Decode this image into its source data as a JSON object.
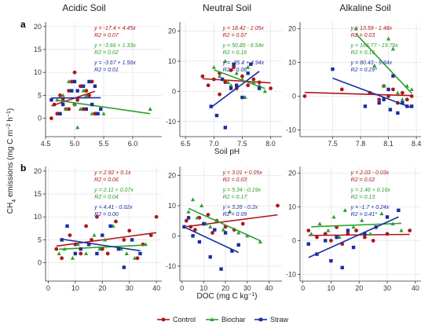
{
  "figure": {
    "column_titles": [
      "Acidic Soil",
      "Neutral Soil",
      "Alkaline Soil"
    ],
    "row_letters": [
      "a",
      "b"
    ],
    "y_axis_label": "CH4 emissions (mg C m-2 h-1)",
    "colors": {
      "Control": "#b0161c",
      "Biochar": "#2e9e2e",
      "Straw": "#1a2ea0"
    }
  },
  "legend": [
    {
      "name": "Control",
      "marker": "circle",
      "color": "#b0161c"
    },
    {
      "name": "Biochar",
      "marker": "triangle",
      "color": "#2e9e2e"
    },
    {
      "name": "Straw",
      "marker": "square",
      "color": "#1a2ea0"
    }
  ],
  "chart_data": [
    {
      "type": "scatter",
      "panel": "a",
      "title": "Acidic Soil",
      "xlabel": "",
      "xlim": [
        4.5,
        6.5
      ],
      "ylim": [
        -4,
        21
      ],
      "xticks": [
        4.5,
        5.0,
        5.5,
        6.0
      ],
      "yticks": [
        0,
        5,
        10,
        15,
        20
      ],
      "series": [
        {
          "name": "Control",
          "equation": "y = -17.4 + 4.45x",
          "r2": "R2 = 0.07",
          "x": [
            4.6,
            4.65,
            4.7,
            4.75,
            4.8,
            4.85,
            4.9,
            4.95,
            5.0,
            5.05,
            5.1,
            5.15,
            5.2,
            5.25,
            5.3,
            5.35,
            5.0,
            4.9
          ],
          "y": [
            0,
            3,
            1,
            5,
            4,
            2,
            6,
            8,
            3,
            4,
            7,
            2,
            6,
            5,
            8,
            1,
            10,
            2
          ]
        },
        {
          "name": "Biochar",
          "equation": "y = -3.66 + 1.33x",
          "r2": "R2 = 0.02",
          "x": [
            4.7,
            4.8,
            4.85,
            4.9,
            5.0,
            5.05,
            5.1,
            5.15,
            5.2,
            5.3,
            5.5,
            6.3
          ],
          "y": [
            4,
            5,
            2,
            8,
            3,
            -2,
            2,
            6,
            5,
            1,
            1,
            2
          ]
        },
        {
          "name": "Straw",
          "equation": "y = -3.67 + 1.56x",
          "r2": "R2 = 0.01",
          "x": [
            4.6,
            4.75,
            4.8,
            4.95,
            5.0,
            5.05,
            5.15,
            5.2,
            5.25,
            5.3,
            5.35,
            5.4,
            5.45
          ],
          "y": [
            4,
            1,
            3,
            6,
            8,
            6,
            7,
            2,
            8,
            3,
            7,
            1,
            2
          ]
        }
      ]
    },
    {
      "type": "scatter",
      "panel": "a",
      "title": "Neutral Soil",
      "xlabel": "Soil pH",
      "xlim": [
        6.4,
        8.2
      ],
      "ylim": [
        -15,
        23
      ],
      "xticks": [
        6.5,
        7.0,
        7.5,
        8.0
      ],
      "yticks": [
        -10,
        0,
        10,
        20
      ],
      "series": [
        {
          "name": "Control",
          "equation": "y = 18.42 - 2.05x",
          "r2": "R2 = 0.07",
          "x": [
            6.8,
            6.9,
            7.0,
            7.1,
            7.2,
            7.3,
            7.4,
            7.5,
            7.6,
            7.7,
            7.8,
            8.0,
            7.1,
            7.35
          ],
          "y": [
            5,
            2,
            4,
            6,
            3,
            7,
            1,
            5,
            2,
            4,
            3,
            1,
            -1,
            8
          ]
        },
        {
          "name": "Biochar",
          "equation": "y = 50.85 - 6.54x",
          "r2": "R2 = 0.16",
          "x": [
            7.0,
            7.1,
            7.2,
            7.25,
            7.3,
            7.4,
            7.5,
            7.55,
            7.6,
            7.7,
            7.8,
            7.9
          ],
          "y": [
            8,
            5,
            10,
            3,
            2,
            6,
            4,
            -2,
            8,
            3,
            2,
            0
          ]
        },
        {
          "name": "Straw",
          "equation": "y = -35.4 + 4.94x",
          "r2": "R2 = 0.06",
          "x": [
            6.95,
            7.05,
            7.15,
            7.2,
            7.3,
            7.35,
            7.4,
            7.5,
            7.6,
            7.65,
            7.8
          ],
          "y": [
            -5,
            -8,
            4,
            -12,
            1,
            9,
            2,
            -2,
            6,
            9,
            1
          ]
        }
      ]
    },
    {
      "type": "scatter",
      "panel": "a",
      "title": "Alkaline Soil",
      "xlabel": "",
      "xlim": [
        7.15,
        8.45
      ],
      "ylim": [
        -12,
        22
      ],
      "xticks": [
        7.5,
        7.8,
        8.1,
        8.4
      ],
      "yticks": [
        -10,
        0,
        10,
        20
      ],
      "series": [
        {
          "name": "Control",
          "equation": "y = 13.59 - 1.48x",
          "r2": "R2 = 0.03",
          "x": [
            7.2,
            7.6,
            7.9,
            8.0,
            8.05,
            8.1,
            8.15,
            8.2,
            8.25,
            8.3,
            8.35
          ],
          "y": [
            0,
            2,
            1,
            -1,
            3,
            0,
            2,
            -2,
            1,
            -1,
            0
          ]
        },
        {
          "name": "Biochar",
          "equation": "y = 166.77 - 19.78x",
          "r2": "R2 = 0.16",
          "x": [
            7.75,
            7.95,
            8.05,
            8.1,
            8.15,
            8.2,
            8.25,
            8.3,
            8.35
          ],
          "y": [
            20,
            9,
            3,
            17,
            14,
            1,
            -1,
            3,
            2
          ]
        },
        {
          "name": "Straw",
          "equation": "y = 80.43 - 9.84x",
          "r2": "R2 = 0.29*",
          "x": [
            7.5,
            7.85,
            8.0,
            8.05,
            8.1,
            8.12,
            8.15,
            8.2,
            8.25,
            8.3,
            8.35
          ],
          "y": [
            8,
            -3,
            -2,
            -1,
            2,
            -4,
            6,
            -5,
            -2,
            -3,
            -3
          ]
        }
      ]
    },
    {
      "type": "scatter",
      "panel": "b",
      "title": "",
      "xlabel": "",
      "xlim": [
        -1,
        42
      ],
      "ylim": [
        -4,
        21
      ],
      "xticks": [
        0,
        10,
        20,
        30,
        40
      ],
      "yticks": [
        0,
        5,
        10,
        15,
        20
      ],
      "series": [
        {
          "name": "Control",
          "equation": "y = 2.92 + 0.1x",
          "r2": "R2 = 0.06",
          "x": [
            3,
            5,
            8,
            10,
            12,
            14,
            16,
            18,
            20,
            22,
            25,
            28,
            30,
            33,
            35,
            38,
            40
          ],
          "y": [
            3,
            1,
            6,
            4,
            2,
            8,
            5,
            10,
            3,
            2,
            9,
            5,
            7,
            1,
            4,
            6,
            10
          ]
        },
        {
          "name": "Biochar",
          "equation": "y = 2.11 + 0.07x",
          "r2": "R2 = 0.04",
          "x": [
            4,
            6,
            9,
            11,
            14,
            17,
            19,
            21,
            24,
            27,
            29,
            32,
            36
          ],
          "y": [
            2,
            3,
            1,
            4,
            2,
            6,
            3,
            5,
            8,
            3,
            2,
            1,
            4
          ]
        },
        {
          "name": "Straw",
          "equation": "y = 4.41 - 0.02x",
          "r2": "R2 = 0.00",
          "x": [
            5,
            7,
            10,
            12,
            15,
            18,
            20,
            23,
            26,
            28,
            31,
            34
          ],
          "y": [
            5,
            8,
            2,
            3,
            4,
            2,
            6,
            8,
            3,
            -1,
            5,
            2
          ]
        }
      ]
    },
    {
      "type": "scatter",
      "panel": "b",
      "title": "",
      "xlabel": "DOC (mg C kg-1)",
      "xlim": [
        -1,
        46
      ],
      "ylim": [
        -15,
        23
      ],
      "xticks": [
        0,
        10,
        20,
        30,
        40
      ],
      "yticks": [
        -10,
        0,
        10,
        20
      ],
      "series": [
        {
          "name": "Control",
          "equation": "y = 3.01 + 0.05x",
          "r2": "R2 = 0.03",
          "x": [
            2,
            4,
            6,
            8,
            10,
            12,
            14,
            16,
            20,
            24,
            28,
            44
          ],
          "y": [
            5,
            3,
            2,
            6,
            4,
            7,
            1,
            5,
            3,
            2,
            4,
            10
          ]
        },
        {
          "name": "Biochar",
          "equation": "y = 5.34 - 0.19x",
          "r2": "R2 = 0.17",
          "x": [
            3,
            5,
            7,
            9,
            11,
            13,
            16,
            19,
            22,
            26,
            30,
            36
          ],
          "y": [
            8,
            12,
            6,
            10,
            4,
            3,
            5,
            2,
            8,
            1,
            0,
            -2
          ]
        },
        {
          "name": "Straw",
          "equation": "y = 3.26 - 0.2x",
          "r2": "R2 = 0.09",
          "x": [
            1,
            3,
            5,
            8,
            10,
            13,
            15,
            18,
            20,
            23,
            26
          ],
          "y": [
            3,
            6,
            0,
            -2,
            4,
            -7,
            2,
            -11,
            1,
            -5,
            -3
          ]
        }
      ]
    },
    {
      "type": "scatter",
      "panel": "b",
      "title": "",
      "xlabel": "",
      "xlim": [
        -1,
        42
      ],
      "ylim": [
        -12,
        22
      ],
      "xticks": [
        0,
        10,
        20,
        30,
        40
      ],
      "yticks": [
        -10,
        0,
        10,
        20
      ],
      "series": [
        {
          "name": "Control",
          "equation": "y = 2.03 - 0.03x",
          "r2": "R2 = 0.02",
          "x": [
            2,
            5,
            8,
            10,
            12,
            14,
            16,
            19,
            22,
            25,
            30,
            38
          ],
          "y": [
            3,
            1,
            2,
            0,
            4,
            -1,
            2,
            3,
            1,
            0,
            2,
            3
          ]
        },
        {
          "name": "Biochar",
          "equation": "y = 1.46 + 0.16x",
          "r2": "R2 = 0.13",
          "x": [
            3,
            6,
            9,
            11,
            13,
            15,
            18,
            21,
            24,
            28,
            32,
            35
          ],
          "y": [
            2,
            5,
            3,
            7,
            1,
            9,
            4,
            6,
            2,
            8,
            5,
            3
          ]
        },
        {
          "name": "Straw",
          "equation": "y = -1.7 + 0.24x",
          "r2": "R2 = 0.41*",
          "x": [
            2,
            5,
            8,
            10,
            12,
            14,
            16,
            18,
            22,
            26,
            30,
            34
          ],
          "y": [
            -1,
            -4,
            0,
            -6,
            1,
            -8,
            3,
            -2,
            2,
            4,
            7,
            9
          ]
        }
      ]
    }
  ]
}
